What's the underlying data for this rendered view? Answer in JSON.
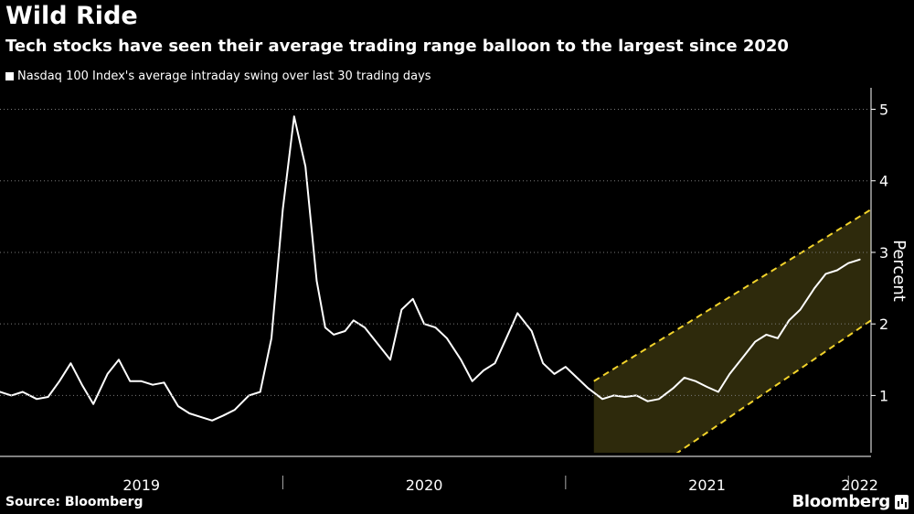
{
  "header": {
    "title": "Wild Ride",
    "subtitle": "Tech stocks have seen their average trading range balloon to the largest since 2020",
    "legend_label": "Nasdaq 100 Index's average intraday swing over last 30 trading days"
  },
  "footer": {
    "source": "Source: Bloomberg",
    "brand": "Bloomberg"
  },
  "colors": {
    "background": "#000000",
    "line": "#ffffff",
    "channel_fill": "#2e2a0c",
    "channel_line": "#f2d32b",
    "axis": "#ffffff"
  },
  "chart_data": {
    "type": "line",
    "title": "Wild Ride",
    "subtitle": "Tech stocks have seen their average trading range balloon to the largest since 2020",
    "ylabel": "Percent",
    "xlabel": "",
    "ylim": [
      0.2,
      5.3
    ],
    "xlim": [
      2019.0,
      2022.08
    ],
    "yticks": [
      1,
      2,
      3,
      4,
      5
    ],
    "ytick_labels": [
      "1",
      "2",
      "3",
      "4",
      "5"
    ],
    "xtick_labels": [
      {
        "label": "2019",
        "center": 2019.5
      },
      {
        "label": "2020",
        "center": 2020.5
      },
      {
        "label": "2021",
        "center": 2021.5
      },
      {
        "label": "2022",
        "center": 2022.04
      }
    ],
    "year_boundaries": [
      2020.0,
      2021.0,
      2022.0
    ],
    "series": [
      {
        "name": "Nasdaq 100 Index's average intraday swing over last 30 trading days",
        "x": [
          2019.0,
          2019.04,
          2019.08,
          2019.13,
          2019.17,
          2019.21,
          2019.25,
          2019.29,
          2019.33,
          2019.38,
          2019.42,
          2019.46,
          2019.5,
          2019.54,
          2019.58,
          2019.63,
          2019.67,
          2019.71,
          2019.75,
          2019.79,
          2019.83,
          2019.88,
          2019.92,
          2019.96,
          2020.0,
          2020.04,
          2020.08,
          2020.12,
          2020.15,
          2020.18,
          2020.22,
          2020.25,
          2020.29,
          2020.33,
          2020.38,
          2020.42,
          2020.46,
          2020.5,
          2020.54,
          2020.58,
          2020.63,
          2020.67,
          2020.71,
          2020.75,
          2020.79,
          2020.83,
          2020.88,
          2020.92,
          2020.96,
          2021.0,
          2021.04,
          2021.08,
          2021.13,
          2021.17,
          2021.21,
          2021.25,
          2021.29,
          2021.33,
          2021.38,
          2021.42,
          2021.46,
          2021.5,
          2021.54,
          2021.58,
          2021.63,
          2021.67,
          2021.71,
          2021.75,
          2021.79,
          2021.83,
          2021.88,
          2021.92,
          2021.96,
          2022.0,
          2022.04
        ],
        "values": [
          1.05,
          1.0,
          1.05,
          0.95,
          0.98,
          1.2,
          1.45,
          1.15,
          0.88,
          1.3,
          1.5,
          1.2,
          1.2,
          1.15,
          1.18,
          0.85,
          0.75,
          0.7,
          0.65,
          0.72,
          0.8,
          1.0,
          1.05,
          1.8,
          3.6,
          4.9,
          4.2,
          2.6,
          1.95,
          1.85,
          1.9,
          2.05,
          1.95,
          1.75,
          1.5,
          2.2,
          2.35,
          2.0,
          1.95,
          1.8,
          1.5,
          1.2,
          1.35,
          1.45,
          1.8,
          2.15,
          1.9,
          1.45,
          1.3,
          1.4,
          1.25,
          1.1,
          0.95,
          1.0,
          0.98,
          1.0,
          0.92,
          0.95,
          1.1,
          1.25,
          1.2,
          1.12,
          1.05,
          1.3,
          1.55,
          1.75,
          1.85,
          1.8,
          2.05,
          2.2,
          2.5,
          2.7,
          2.75,
          2.85,
          2.9
        ]
      }
    ],
    "channel": {
      "x_start": 2021.1,
      "x_end": 2022.08,
      "upper": [
        1.2,
        3.6
      ],
      "lower": [
        -0.6,
        2.05
      ]
    }
  }
}
